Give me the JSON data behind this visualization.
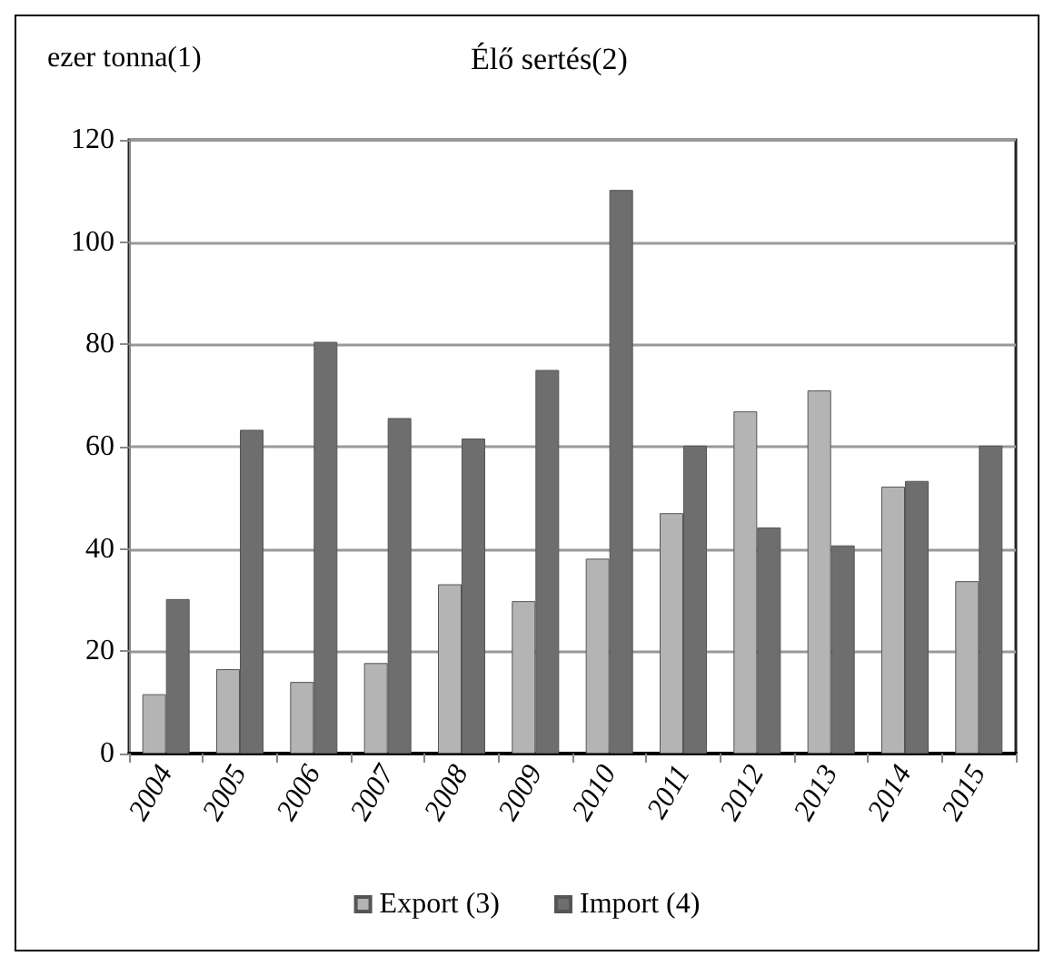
{
  "chart_data": {
    "type": "bar",
    "title": "Élő sertés(2)",
    "ylabel": "ezer tonna(1)",
    "categories": [
      "2004",
      "2005",
      "2006",
      "2007",
      "2008",
      "2009",
      "2010",
      "2011",
      "2012",
      "2013",
      "2014",
      "2015"
    ],
    "series": [
      {
        "name": "Export (3)",
        "color": "#b4b4b4",
        "values": [
          11.6,
          16.5,
          14,
          17.7,
          33.1,
          29.8,
          38.1,
          47,
          66.9,
          71,
          52.2,
          33.7
        ]
      },
      {
        "name": "Import (4)",
        "color": "#6e6e6e",
        "values": [
          30.2,
          63.3,
          80.5,
          65.6,
          61.6,
          75,
          110.2,
          60.2,
          44.2,
          40.7,
          53.3,
          60.2
        ]
      }
    ],
    "ylim": [
      0,
      120
    ],
    "yticks": [
      0,
      20,
      40,
      60,
      80,
      100,
      120
    ],
    "grid": "y",
    "legend": "bottom"
  }
}
